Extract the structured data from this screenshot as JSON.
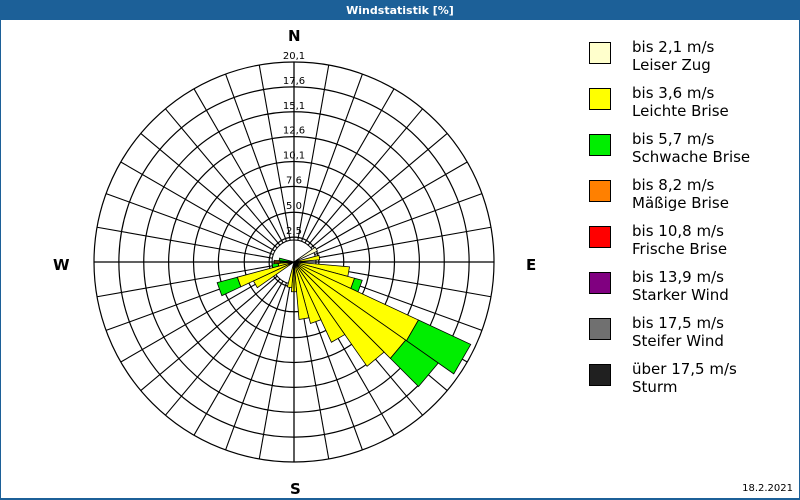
{
  "window": {
    "title": "Windstatistik [%]"
  },
  "footer": {
    "date": "18.2.2021"
  },
  "compass": {
    "north": "N",
    "east": "E",
    "south": "S",
    "west": "W"
  },
  "rings": {
    "labels": [
      "2,5",
      "5,0",
      "7,6",
      "10,1",
      "12,6",
      "15,1",
      "17,6",
      "20,1"
    ],
    "max": 20.1
  },
  "legend": [
    {
      "range": "bis 2,1 m/s",
      "name": "Leiser Zug",
      "color": "#ffffcc"
    },
    {
      "range": "bis 3,6 m/s",
      "name": "Leichte Brise",
      "color": "#ffff00"
    },
    {
      "range": "bis 5,7 m/s",
      "name": "Schwache Brise",
      "color": "#00ee00"
    },
    {
      "range": "bis 8,2 m/s",
      "name": "Mäßige Brise",
      "color": "#ff8000"
    },
    {
      "range": "bis 10,8 m/s",
      "name": "Frische Brise",
      "color": "#ff0000"
    },
    {
      "range": "bis 13,9 m/s",
      "name": "Starker Wind",
      "color": "#800080"
    },
    {
      "range": "bis 17,5 m/s",
      "name": "Steifer Wind",
      "color": "#707070"
    },
    {
      "range": "über 17,5 m/s",
      "name": "Sturm",
      "color": "#202020"
    }
  ],
  "chart_data": {
    "type": "wind-rose",
    "title": "Windstatistik [%]",
    "radial_unit": "%",
    "radial_ticks": [
      2.5,
      5.0,
      7.6,
      10.1,
      12.6,
      15.1,
      17.6,
      20.1
    ],
    "radial_range": [
      0,
      20.1
    ],
    "sector_width_deg": 10,
    "sectors_note": "bearing in degrees clockwise from North; cumulative values per speed class (%)",
    "series_names": [
      "Leiser Zug",
      "Leichte Brise",
      "Schwache Brise",
      "Mäßige Brise"
    ],
    "sectors": [
      {
        "bearing": 60,
        "cumulative": [
          2.6,
          2.6,
          2.6,
          2.6
        ]
      },
      {
        "bearing": 80,
        "cumulative": [
          0.4,
          2.6,
          2.6,
          2.6
        ]
      },
      {
        "bearing": 100,
        "cumulative": [
          0.4,
          5.6,
          5.6,
          5.6
        ]
      },
      {
        "bearing": 110,
        "cumulative": [
          0.4,
          6.3,
          7.1,
          7.1
        ]
      },
      {
        "bearing": 120,
        "cumulative": [
          0.4,
          13.8,
          19.6,
          19.6
        ]
      },
      {
        "bearing": 130,
        "cumulative": [
          0.4,
          13.7,
          17.7,
          17.7
        ]
      },
      {
        "bearing": 140,
        "cumulative": [
          0.4,
          12.8,
          12.8,
          12.8
        ]
      },
      {
        "bearing": 150,
        "cumulative": [
          0.4,
          8.9,
          8.9,
          8.9
        ]
      },
      {
        "bearing": 160,
        "cumulative": [
          0.4,
          6.4,
          6.4,
          6.4
        ]
      },
      {
        "bearing": 170,
        "cumulative": [
          0.4,
          5.8,
          5.8,
          5.8
        ]
      },
      {
        "bearing": 180,
        "cumulative": [
          0.4,
          3.0,
          3.0,
          3.0
        ]
      },
      {
        "bearing": 190,
        "cumulative": [
          0.4,
          2.6,
          2.6,
          2.6
        ]
      },
      {
        "bearing": 240,
        "cumulative": [
          0.3,
          4.5,
          4.5,
          4.5
        ]
      },
      {
        "bearing": 250,
        "cumulative": [
          0.3,
          5.9,
          8.0,
          8.0
        ]
      },
      {
        "bearing": 260,
        "cumulative": [
          0.3,
          1.6,
          2.2,
          2.2
        ]
      },
      {
        "bearing": 270,
        "cumulative": [
          0.3,
          0.3,
          1.4,
          2.0
        ]
      },
      {
        "bearing": 280,
        "cumulative": [
          0.3,
          0.3,
          1.5,
          1.5
        ]
      }
    ]
  }
}
